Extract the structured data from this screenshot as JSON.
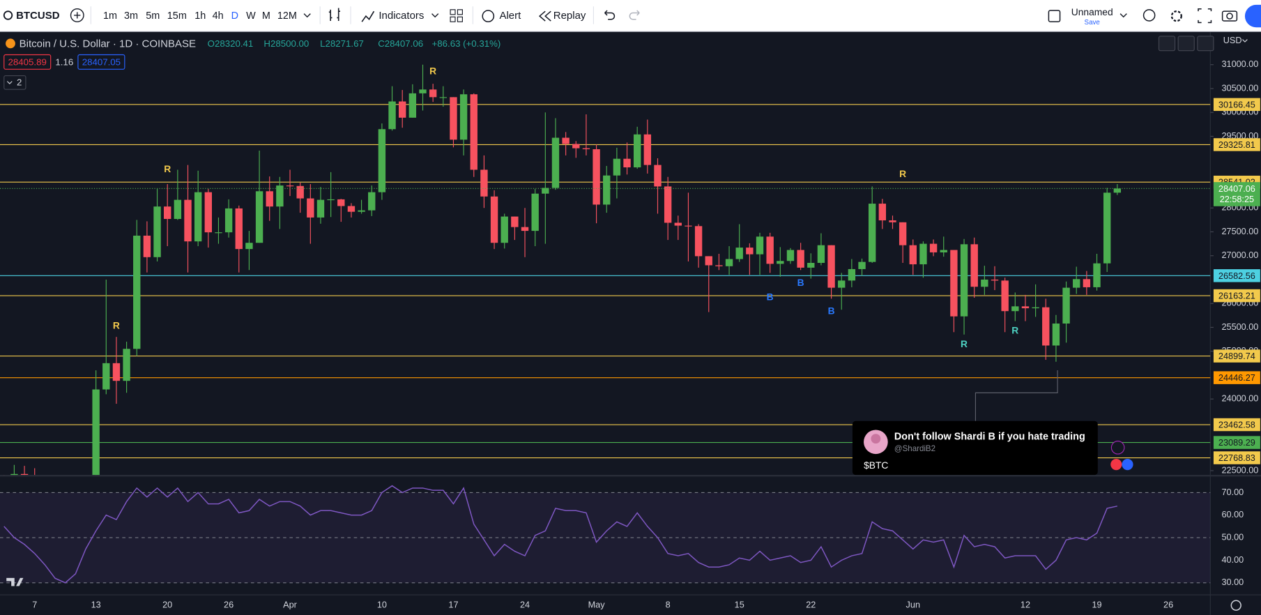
{
  "toolbar": {
    "symbol": "BTCUSD",
    "intervals": [
      "1m",
      "3m",
      "5m",
      "15m",
      "1h",
      "4h",
      "D",
      "W",
      "M",
      "12M"
    ],
    "indicators": "Indicators",
    "alert": "Alert",
    "replay": "Replay",
    "layout_name": "Unnamed",
    "save": "Save"
  },
  "legend": {
    "title": "Bitcoin / U.S. Dollar · 1D · COINBASE",
    "ohlc": [
      "O28320.41",
      "H28500.00",
      "L28271.67",
      "C28407.06",
      "+86.63 (+0.31%)"
    ],
    "bid": "28405.89",
    "spread": "1.16",
    "ask": "28407.05",
    "indicators_count": "2"
  },
  "popup": {
    "title": "Don't follow Shardi B if you hate trading",
    "handle": "@ShardiB2",
    "text": "$BTC"
  },
  "chart_data": [
    {
      "type": "candlestick",
      "currency": "USD",
      "up_color": "#4caf50",
      "down_color": "#f7525f",
      "categories": [
        null,
        null,
        null,
        "7",
        null,
        null,
        null,
        null,
        null,
        "13",
        null,
        null,
        null,
        null,
        null,
        null,
        "20",
        null,
        null,
        null,
        null,
        null,
        "26",
        null,
        null,
        null,
        null,
        null,
        "Apr",
        null,
        null,
        null,
        null,
        null,
        null,
        null,
        null,
        "10",
        null,
        null,
        null,
        null,
        null,
        null,
        "17",
        null,
        null,
        null,
        null,
        null,
        null,
        "24",
        null,
        null,
        null,
        null,
        null,
        null,
        "May",
        null,
        null,
        null,
        null,
        null,
        null,
        "8",
        null,
        null,
        null,
        null,
        null,
        null,
        "15",
        null,
        null,
        null,
        null,
        null,
        null,
        "22",
        null,
        null,
        null,
        null,
        null,
        null,
        null,
        null,
        null,
        "Jun",
        null,
        null,
        null,
        null,
        null,
        null,
        null,
        null,
        null,
        null,
        "12",
        null,
        null,
        null,
        null,
        null,
        null,
        "19",
        null,
        null,
        null,
        null,
        null,
        null,
        "26"
      ],
      "open": [
        22360,
        22350,
        22430,
        22410,
        22200,
        21700,
        20360,
        20190,
        20630,
        22150,
        24200,
        24750,
        24380,
        25050,
        27420,
        26970,
        28030,
        27770,
        28170,
        27300,
        28330,
        27490,
        27490,
        27990,
        27140,
        27270,
        28350,
        28030,
        28470,
        28460,
        28200,
        27800,
        28170,
        28180,
        28040,
        27920,
        27950,
        28330,
        29650,
        30230,
        29890,
        30400,
        30480,
        30320,
        30320,
        29430,
        30380,
        28800,
        28240,
        27270,
        27820,
        27600,
        27520,
        28300,
        28420,
        29470,
        29340,
        29250,
        29230,
        28070,
        28680,
        29030,
        28850,
        29540,
        28900,
        28450,
        27690,
        27630,
        27620,
        26990,
        26800,
        26780,
        26930,
        27170,
        27030,
        27400,
        26830,
        26890,
        27120,
        26750,
        26850,
        27220,
        26330,
        26480,
        26720,
        26870,
        28090,
        27740,
        27700,
        27220,
        26820,
        27250,
        27070,
        27120,
        25730,
        27240,
        26350,
        26500,
        26480,
        25840,
        25940,
        25900,
        25920,
        25120,
        25580,
        26330,
        26510,
        26340,
        26840,
        28320.41,
        null,
        null,
        null,
        null,
        null
      ],
      "high": [
        22410,
        22620,
        22600,
        22550,
        22270,
        21830,
        20360,
        20800,
        22150,
        24600,
        26500,
        25300,
        25200,
        27750,
        27720,
        28400,
        28500,
        28800,
        28900,
        28780,
        28400,
        27800,
        28180,
        28050,
        27520,
        29200,
        28660,
        28650,
        28800,
        28530,
        28500,
        28440,
        28750,
        28190,
        28100,
        28170,
        28470,
        29770,
        30550,
        30470,
        30590,
        31000,
        30600,
        30550,
        30320,
        30480,
        30400,
        29100,
        28370,
        27880,
        27820,
        28000,
        28400,
        30000,
        29880,
        29590,
        29400,
        29960,
        29330,
        28880,
        29260,
        29370,
        29700,
        29850,
        29040,
        28650,
        27840,
        28320,
        27660,
        26990,
        27040,
        27200,
        27660,
        27260,
        27480,
        27480,
        27180,
        27160,
        27270,
        27050,
        27470,
        27220,
        26640,
        26930,
        26940,
        28450,
        28190,
        27840,
        27700,
        27340,
        27300,
        27340,
        27400,
        27120,
        27350,
        27380,
        26790,
        26780,
        26540,
        26230,
        26180,
        26400,
        26100,
        25760,
        26460,
        26770,
        26680,
        27040,
        28420,
        28500,
        null,
        null,
        null,
        null,
        null
      ],
      "low": [
        22180,
        22220,
        22000,
        21950,
        21600,
        19950,
        19570,
        20050,
        20440,
        21900,
        24100,
        23900,
        24130,
        24900,
        26650,
        26880,
        27200,
        27750,
        26650,
        27200,
        27170,
        27250,
        27380,
        26650,
        26700,
        27270,
        27730,
        27560,
        28250,
        27900,
        27250,
        27670,
        27810,
        27710,
        27800,
        27880,
        27830,
        28170,
        29620,
        29680,
        29890,
        30040,
        30220,
        30120,
        29270,
        29100,
        28650,
        28000,
        27140,
        27150,
        27330,
        26970,
        27200,
        27250,
        28380,
        29100,
        29050,
        29100,
        27680,
        27900,
        28200,
        28700,
        28820,
        28720,
        27880,
        27330,
        27330,
        26880,
        26750,
        25820,
        26700,
        26600,
        26870,
        26600,
        26600,
        26640,
        26560,
        26830,
        26700,
        26520,
        26800,
        26100,
        25870,
        26340,
        26580,
        26850,
        27560,
        27560,
        26850,
        26600,
        26540,
        26990,
        26980,
        25400,
        25350,
        26120,
        26180,
        26280,
        25400,
        25630,
        25630,
        25720,
        24820,
        24780,
        25180,
        26200,
        26180,
        26270,
        26660,
        28271.67,
        null,
        null,
        null,
        null,
        null
      ],
      "close": [
        22350,
        22430,
        22410,
        22200,
        21700,
        20360,
        20190,
        20630,
        22150,
        24200,
        24750,
        24380,
        25050,
        27420,
        26970,
        28030,
        27770,
        28170,
        27300,
        28330,
        27490,
        27490,
        27990,
        27140,
        27270,
        28350,
        28030,
        28470,
        28460,
        28200,
        27800,
        28170,
        28180,
        28040,
        27920,
        27950,
        28330,
        29650,
        30230,
        29890,
        30400,
        30480,
        30320,
        30320,
        29430,
        30380,
        28800,
        28240,
        27270,
        27820,
        27600,
        27520,
        28300,
        28420,
        29470,
        29340,
        29250,
        29230,
        28070,
        28680,
        29030,
        28850,
        29540,
        28900,
        28450,
        27690,
        27630,
        27620,
        26990,
        26800,
        26780,
        26930,
        27170,
        27030,
        27400,
        26830,
        26890,
        27120,
        26750,
        26850,
        27220,
        26330,
        26480,
        26720,
        26870,
        28090,
        27740,
        27700,
        27220,
        26820,
        27250,
        27070,
        27120,
        25730,
        27240,
        26350,
        26500,
        26480,
        25840,
        25940,
        25900,
        25920,
        25120,
        25580,
        26330,
        26510,
        26340,
        26840,
        28320,
        28407.06,
        null,
        null,
        null,
        null,
        null
      ],
      "ylim": [
        22410,
        31680
      ],
      "yticks": [
        {
          "value": 22500,
          "label": "22500.00"
        },
        {
          "value": 24000,
          "label": "24000.00"
        },
        {
          "value": 25000,
          "label": "25000.00"
        },
        {
          "value": 25500,
          "label": "25500.00"
        },
        {
          "value": 26000,
          "label": "26000.00"
        },
        {
          "value": 27000,
          "label": "27000.00"
        },
        {
          "value": 27500,
          "label": "27500.00"
        },
        {
          "value": 28000,
          "label": "28000.00"
        },
        {
          "value": 29500,
          "label": "29500.00"
        },
        {
          "value": 30000,
          "label": "30000.00"
        },
        {
          "value": 30500,
          "label": "30500.00"
        },
        {
          "value": 31000,
          "label": "31000.00"
        }
      ],
      "levels": [
        {
          "value": 30166.45,
          "color": "#f2c94c"
        },
        {
          "value": 29325.81,
          "color": "#f2c94c"
        },
        {
          "value": 28541.02,
          "color": "#f2c94c"
        },
        {
          "value": 26582.56,
          "color": "#4dd0e1"
        },
        {
          "value": 26163.21,
          "color": "#f2c94c"
        },
        {
          "value": 24899.74,
          "color": "#f2c94c"
        },
        {
          "value": 24446.27,
          "color": "#ff9800"
        },
        {
          "value": 23462.58,
          "color": "#f2c94c"
        },
        {
          "value": 23089.29,
          "color": "#4caf50"
        },
        {
          "value": 22768.83,
          "color": "#f2c94c"
        }
      ],
      "countdown": "22:58:25",
      "annotations": [
        {
          "text": "R",
          "x": 11,
          "y": 25525,
          "color": "#f2c94c"
        },
        {
          "text": "R",
          "x": 16,
          "y": 28800,
          "color": "#f2c94c"
        },
        {
          "text": "R",
          "x": 42,
          "y": 30850,
          "color": "#f2c94c"
        },
        {
          "text": "R",
          "x": 88,
          "y": 28700,
          "color": "#f2c94c"
        },
        {
          "text": "R",
          "x": 94,
          "y": 25135,
          "color": "#4dd0c1"
        },
        {
          "text": "R",
          "x": 99,
          "y": 25420,
          "color": "#4dd0c1"
        },
        {
          "text": "B",
          "x": 75,
          "y": 26120,
          "color": "#2979ff"
        },
        {
          "text": "B",
          "x": 78,
          "y": 26420,
          "color": "#2979ff"
        },
        {
          "text": "B",
          "x": 81,
          "y": 25830,
          "color": "#2979ff"
        }
      ]
    },
    {
      "type": "line",
      "color": "#7e57c2",
      "values": [
        55,
        50,
        47,
        43,
        38,
        32,
        30,
        34,
        45,
        53,
        60,
        58,
        66,
        72,
        68,
        72,
        68,
        72,
        66,
        70,
        65,
        65,
        67,
        61,
        62,
        67,
        64,
        66,
        66,
        64,
        60,
        62,
        62,
        61,
        60,
        60,
        62,
        70,
        73,
        70,
        72,
        72,
        71,
        71,
        65,
        72,
        56,
        49,
        42,
        47,
        44,
        42,
        51,
        53,
        63,
        62,
        62,
        61,
        48,
        53,
        57,
        55,
        61,
        55,
        50,
        43,
        42,
        43,
        39,
        37,
        37,
        38,
        41,
        40,
        44,
        40,
        41,
        42,
        39,
        40,
        46,
        37,
        40,
        42,
        43,
        57,
        54,
        53,
        49,
        45,
        49,
        48,
        49,
        37,
        51,
        46,
        47,
        46,
        41,
        42,
        42,
        42,
        36,
        40,
        49,
        50,
        49,
        52,
        63,
        64,
        null,
        null,
        null,
        null,
        null
      ],
      "ylim": [
        25,
        77.1
      ],
      "yticks": [
        {
          "value": 30,
          "label": "30.00"
        },
        {
          "value": 40,
          "label": "40.00"
        },
        {
          "value": 50,
          "label": "50.00"
        },
        {
          "value": 60,
          "label": "60.00"
        },
        {
          "value": 70,
          "label": "70.00"
        }
      ],
      "grid": true
    }
  ]
}
